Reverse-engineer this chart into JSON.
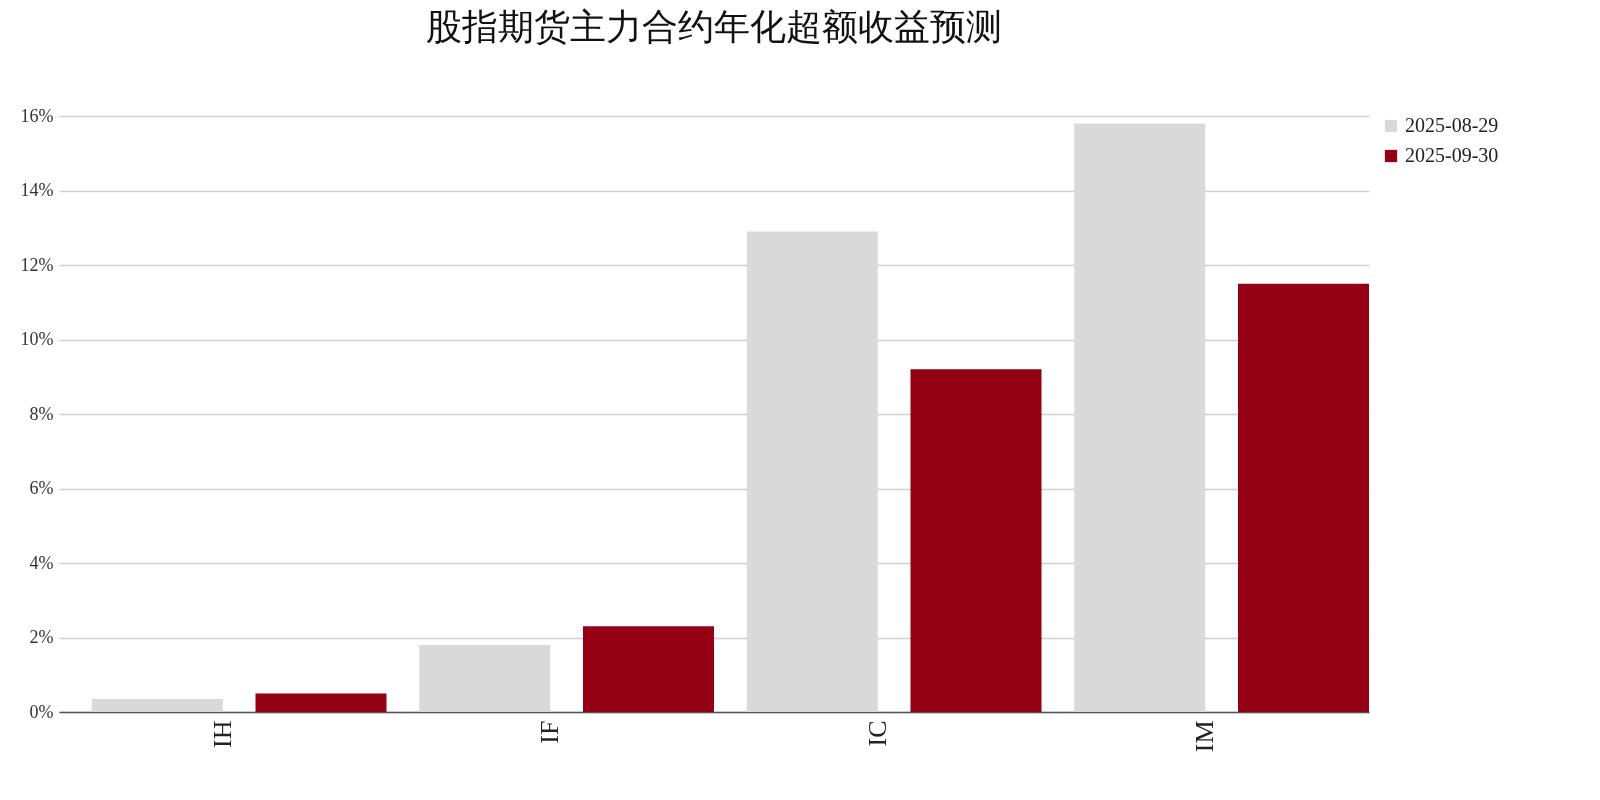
{
  "chart_data": {
    "type": "bar",
    "title": "股指期货主力合约年化超额收益预测",
    "categories": [
      "IH",
      "IF",
      "IC",
      "IM"
    ],
    "series": [
      {
        "name": "2025-08-29",
        "color": "#d9d9d9",
        "values": [
          0.35,
          1.8,
          12.9,
          15.8
        ]
      },
      {
        "name": "2025-09-30",
        "color": "#940014",
        "values": [
          0.5,
          2.3,
          9.2,
          11.5
        ]
      }
    ],
    "ylim": [
      0,
      16
    ],
    "yticks": [
      {
        "value": 0,
        "label": "0%"
      },
      {
        "value": 2,
        "label": "2%"
      },
      {
        "value": 4,
        "label": "4%"
      },
      {
        "value": 6,
        "label": "6%"
      },
      {
        "value": 8,
        "label": "8%"
      },
      {
        "value": 10,
        "label": "10%"
      },
      {
        "value": 12,
        "label": "12%"
      },
      {
        "value": 14,
        "label": "14%"
      },
      {
        "value": 16,
        "label": "16%"
      }
    ],
    "grid": "y",
    "legend": "top right"
  }
}
